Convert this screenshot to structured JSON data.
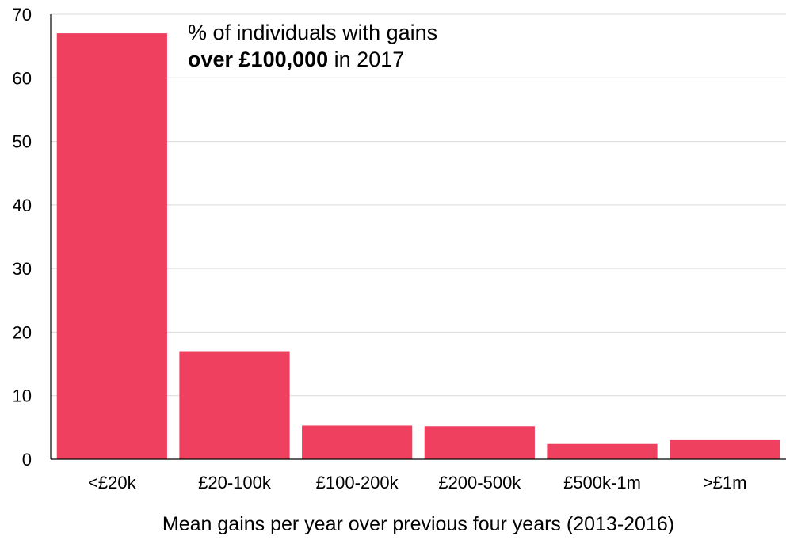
{
  "chart_data": {
    "type": "bar",
    "title_lines": [
      [
        {
          "text": "% of individuals with gains",
          "bold": false
        }
      ],
      [
        {
          "text": "over £100,000",
          "bold": true
        },
        {
          "text": " in 2017",
          "bold": false
        }
      ]
    ],
    "xlabel": "Mean gains per year over previous four years (2013-2016)",
    "ylabel": "",
    "categories": [
      "<£20k",
      "£20-100k",
      "£100-200k",
      "£200-500k",
      "£500k-1m",
      ">£1m"
    ],
    "values": [
      67,
      17,
      5.3,
      5.2,
      2.4,
      3.0
    ],
    "ylim": [
      0,
      70
    ],
    "yticks": [
      0,
      10,
      20,
      30,
      40,
      50,
      60,
      70
    ],
    "grid": true,
    "legend": "none",
    "bar_color": "#ef4060",
    "grid_color": "#d9d9d9"
  }
}
